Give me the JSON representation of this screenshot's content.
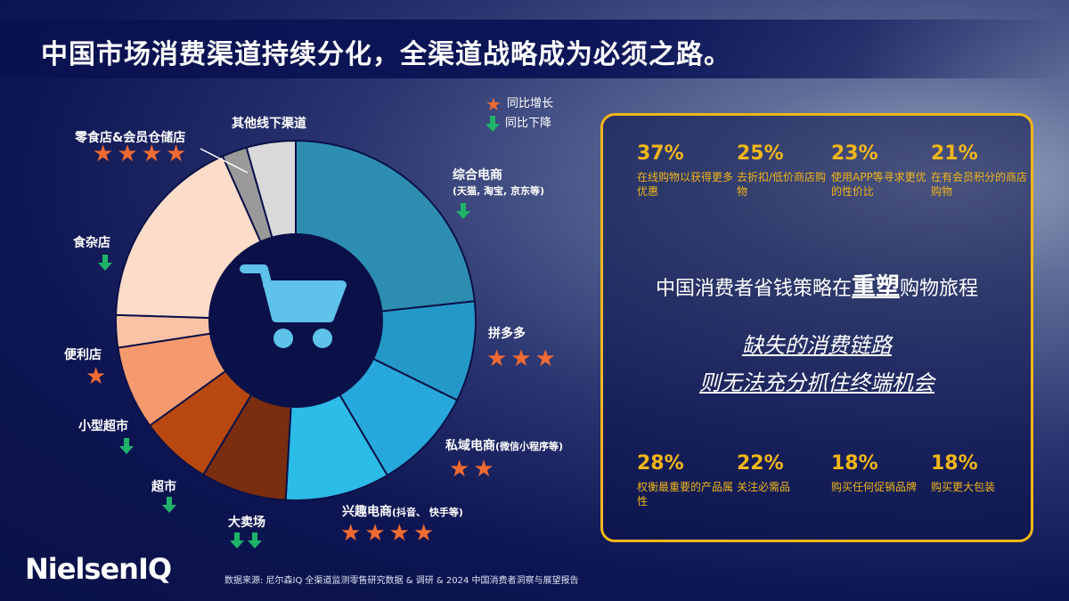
{
  "title": "中国市场消费渠道持续分化，全渠道战略成为必须之路。",
  "legend": {
    "up": "同比增长",
    "down": "同比下降"
  },
  "chart_data": {
    "type": "pie",
    "categories": [
      "综合电商",
      "拼多多",
      "私域电商",
      "兴趣电商",
      "大卖场",
      "超市",
      "小型超市",
      "便利店",
      "食杂店",
      "零食店&会员仓储店",
      "其他线下渠道"
    ],
    "sublabels": [
      "(天猫, 淘宝, 京东等)",
      "",
      "(微信小程序等)",
      "(抖音、 快手等)",
      "",
      "",
      "",
      "",
      "",
      "",
      ""
    ],
    "values": [
      24.8,
      9.6,
      9.8,
      10.0,
      8.2,
      6.9,
      8.0,
      3.1,
      19.0,
      2.4,
      4.7
    ],
    "trend_marks": [
      "↓",
      "★★★",
      "★★",
      "★★★★",
      "↓↓",
      "↓",
      "↓",
      "★",
      "↓",
      "★★★★",
      ""
    ],
    "colors": [
      "#2d8eb1",
      "#2499c8",
      "#27a8dc",
      "#2dbbe8",
      "#7a2e0f",
      "#b8480f",
      "#f49a6e",
      "#fac3a6",
      "#fddcc9",
      "#9a9a9a",
      "#d9d9d9"
    ],
    "center_icon": "shopping-cart-icon"
  },
  "stats_top": [
    {
      "pct": "37%",
      "desc": "在线购物以获得更多优惠"
    },
    {
      "pct": "25%",
      "desc": "去折扣/低价商店购物"
    },
    {
      "pct": "23%",
      "desc": "使用APP等寻求更优的性价比"
    },
    {
      "pct": "21%",
      "desc": "在有会员积分的商店购物"
    }
  ],
  "headline": {
    "pre": "中国消费者省钱策略在",
    "em": "重塑",
    "post": "购物旅程"
  },
  "italic": {
    "line1": "缺失的消费链路",
    "line2": "则无法充分抓住终端机会"
  },
  "stats_bottom": [
    {
      "pct": "28%",
      "desc": "权衡最重要的产品属性"
    },
    {
      "pct": "22%",
      "desc": "关注必需品"
    },
    {
      "pct": "18%",
      "desc": "购买任何促销品牌"
    },
    {
      "pct": "18%",
      "desc": "购买更大包装"
    }
  ],
  "logo": "NielsenIQ",
  "source": "数据来源: 尼尔森IQ 全渠道监测零售研究数据 & 调研 & 2024 中国消费者洞察与展望报告"
}
